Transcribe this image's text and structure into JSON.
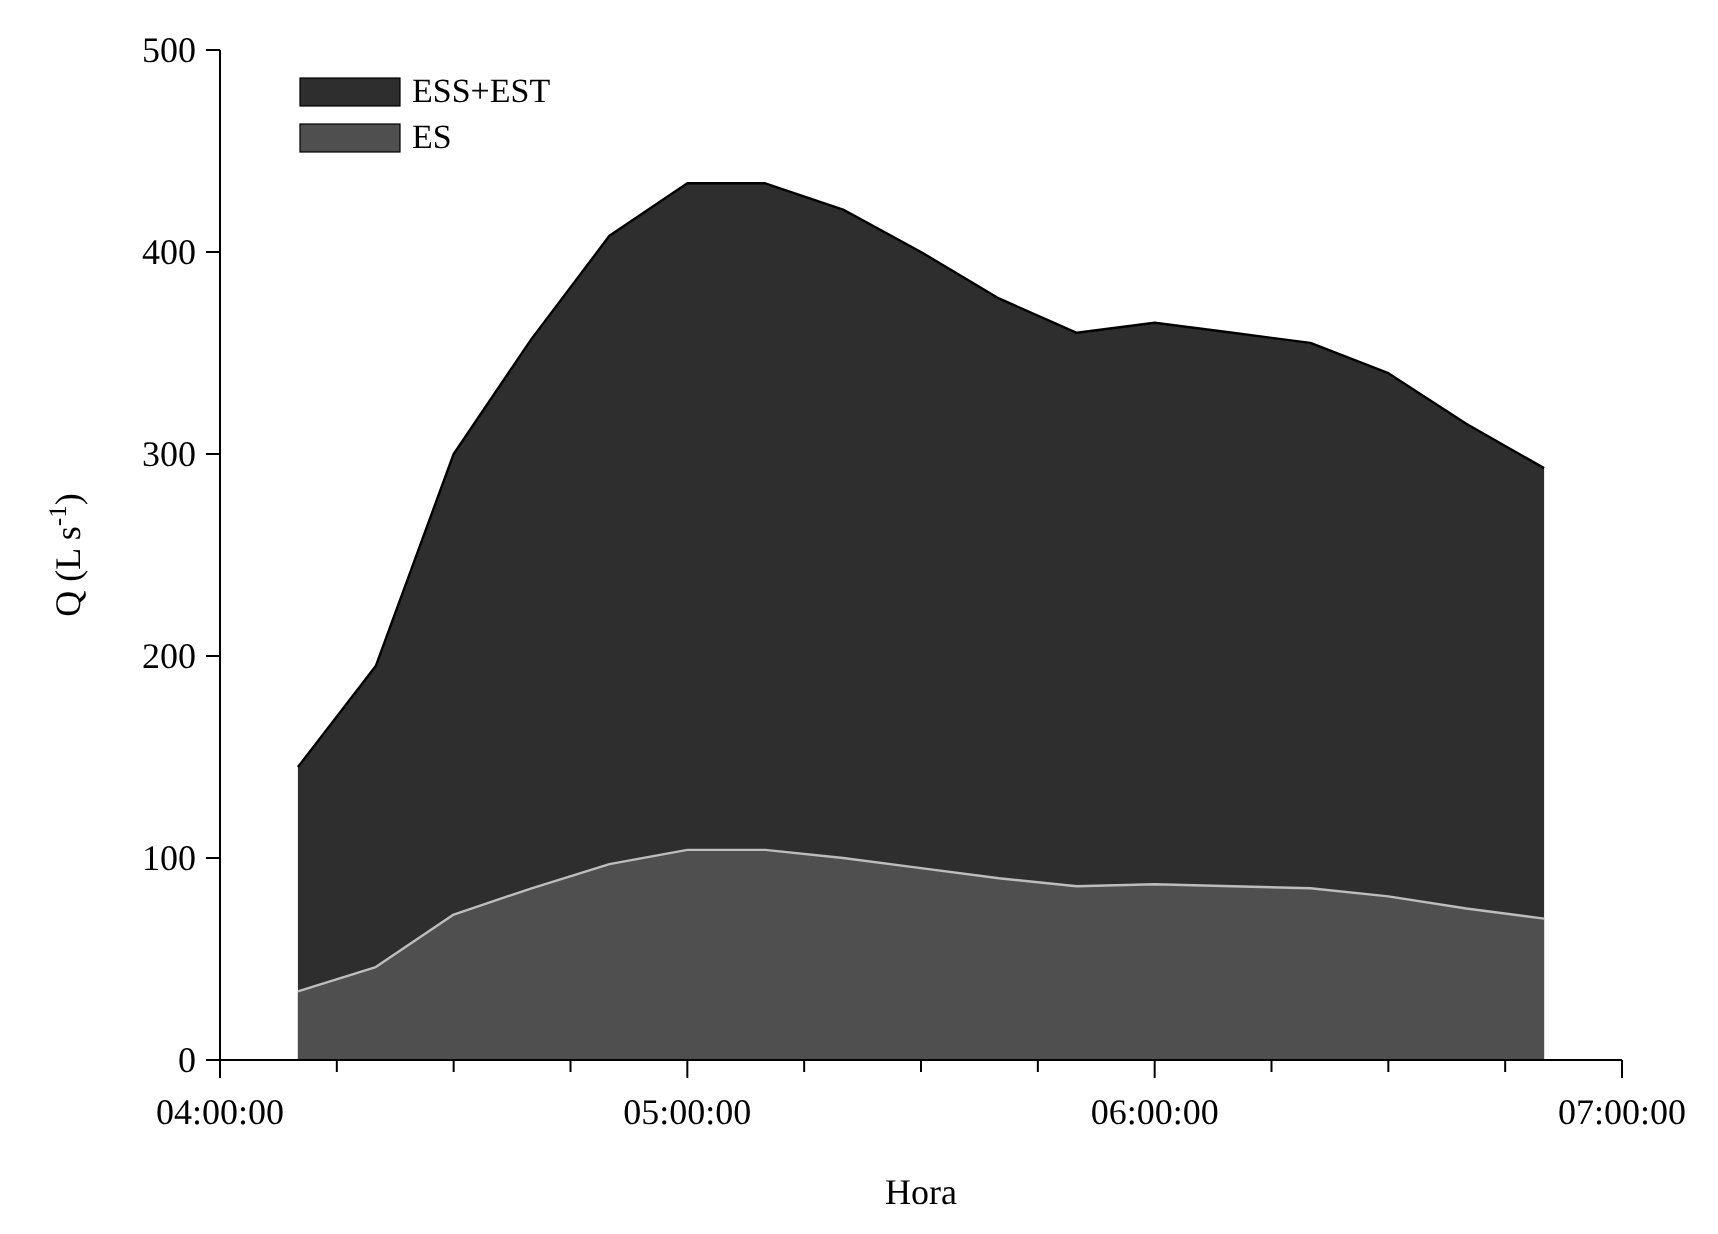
{
  "chart_data": {
    "type": "area",
    "xlabel": "Hora",
    "ylabel": "Q (L s$^{-1}$)",
    "x": [
      4.1667,
      4.3333,
      4.5,
      4.6667,
      4.8333,
      5,
      5.1667,
      5.3333,
      5.5,
      5.6667,
      5.8333,
      6,
      6.1667,
      6.3333,
      6.5,
      6.6667,
      6.8333
    ],
    "series": [
      {
        "name": "ESS+EST",
        "color": "#2e2e2e",
        "values": [
          145,
          195,
          300,
          357,
          408,
          434,
          434,
          421,
          400,
          377,
          360,
          365,
          360,
          355,
          340,
          315,
          293
        ]
      },
      {
        "name": "ES",
        "color": "#4f4f4f",
        "values": [
          34,
          46,
          72,
          85,
          97,
          104,
          104,
          100,
          95,
          90,
          86,
          87,
          86,
          85,
          81,
          75,
          70
        ]
      }
    ],
    "xlim": [
      4,
      7
    ],
    "xticks": [
      {
        "value": 4,
        "label": "04:00:00"
      },
      {
        "value": 4.25,
        "label": null
      },
      {
        "value": 4.5,
        "label": null
      },
      {
        "value": 4.75,
        "label": null
      },
      {
        "value": 5,
        "label": "05:00:00"
      },
      {
        "value": 5.25,
        "label": null
      },
      {
        "value": 5.5,
        "label": null
      },
      {
        "value": 5.75,
        "label": null
      },
      {
        "value": 6,
        "label": "06:00:00"
      },
      {
        "value": 6.25,
        "label": null
      },
      {
        "value": 6.5,
        "label": null
      },
      {
        "value": 6.75,
        "label": null
      },
      {
        "value": 7,
        "label": "07:00:00"
      }
    ],
    "ylim": [
      0,
      500
    ],
    "yticks": [
      0,
      100,
      200,
      300,
      400,
      500
    ],
    "legend": "top left"
  }
}
